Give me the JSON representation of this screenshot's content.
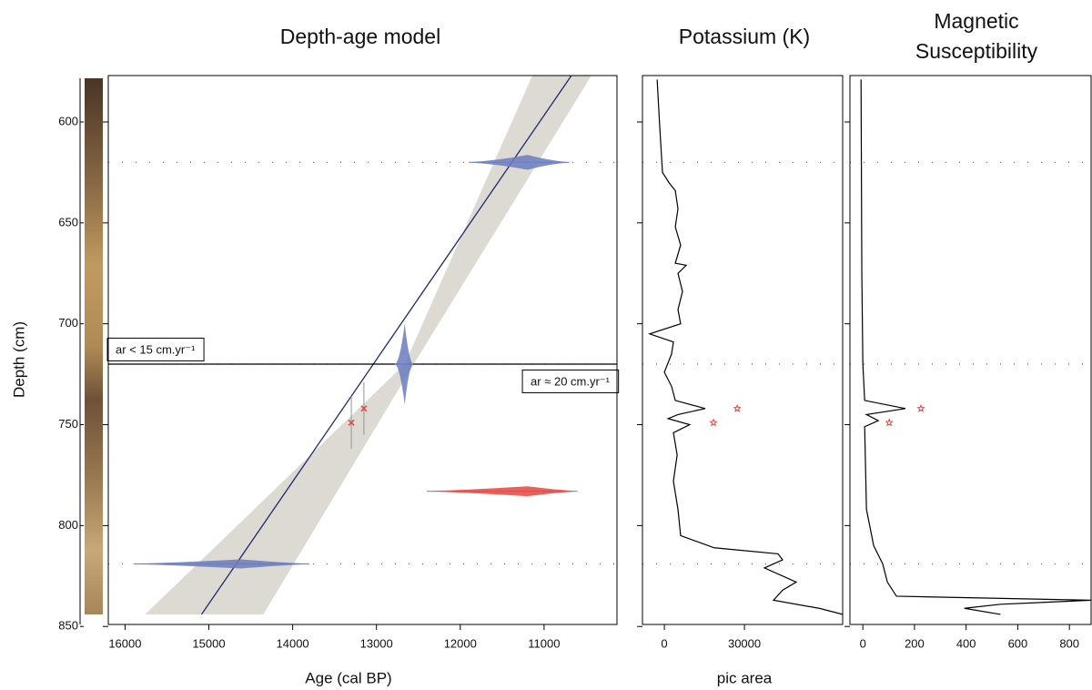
{
  "chart_data": [
    {
      "type": "depth-age",
      "title": "Depth-age model",
      "xlabel": "Age (cal BP)",
      "ylabel": "Depth (cm)",
      "xlim": [
        16200,
        10130
      ],
      "xticks": [
        16000,
        15000,
        14000,
        13000,
        12000,
        11000
      ],
      "ylim": [
        577,
        849
      ],
      "yticks": [
        600,
        650,
        700,
        750,
        800,
        850
      ],
      "marker_depths": [
        620,
        720,
        819
      ],
      "boundary_depth": 720,
      "model": {
        "color": "#1f2a6e",
        "depth": [
          577,
          844
        ],
        "age": [
          10674,
          15087
        ]
      },
      "band": {
        "color": "#dddad3",
        "depth": [
          577,
          720,
          844
        ],
        "age_young": [
          10435,
          12555,
          14350
        ],
        "age_old": [
          11140,
          12663,
          15760
        ]
      },
      "dates": [
        {
          "depth": 620,
          "age": 11196,
          "age_min": 10700,
          "age_max": 11900,
          "color": "#6b7bbf"
        },
        {
          "depth": 720,
          "age": 12663,
          "age_min": 12560,
          "age_max": 12780,
          "color": "#6b7bbf"
        },
        {
          "depth": 783,
          "age": 11200,
          "age_min": 10600,
          "age_max": 12400,
          "color": "#e8453c"
        },
        {
          "depth": 819,
          "age": 14620,
          "age_min": 13800,
          "age_max": 15900,
          "color": "#6b7bbf"
        }
      ],
      "tephra": {
        "color": "#e8453c",
        "depth": [
          749,
          742
        ],
        "age": [
          13300,
          13150
        ],
        "depth_err": [
          13,
          13
        ]
      },
      "annotations": [
        "ar < 15 cm.yr⁻¹",
        "ar ≈ 20 cm.yr⁻¹"
      ]
    },
    {
      "type": "line",
      "title": "Potassium (K)",
      "xlabel": "pic area",
      "xlim": [
        -8200,
        66800
      ],
      "xticks": [
        0,
        30000
      ],
      "color": "#000000",
      "depth": [
        579,
        603,
        625,
        630,
        634,
        643,
        652,
        661,
        670,
        671,
        675,
        684,
        693,
        700,
        705,
        709,
        715,
        724,
        731,
        738,
        742,
        745,
        747,
        750,
        754,
        765,
        778,
        792,
        805,
        811,
        814,
        817,
        821,
        828,
        832,
        837,
        841,
        844
      ],
      "values": [
        -2700,
        -1700,
        -700,
        1700,
        4100,
        5100,
        4100,
        6100,
        4100,
        8200,
        5100,
        6800,
        5100,
        6100,
        -5500,
        3400,
        2700,
        0,
        2700,
        4100,
        15300,
        5100,
        1400,
        9500,
        3400,
        4800,
        3400,
        5100,
        6100,
        18700,
        42600,
        44300,
        37500,
        49400,
        44300,
        40900,
        58000,
        66800
      ],
      "stars": {
        "color": "#e8453c",
        "depth": [
          742,
          749
        ],
        "values": [
          27300,
          18400
        ]
      }
    },
    {
      "type": "line",
      "title_lines": [
        "Magnetic",
        "Susceptibility"
      ],
      "xlim": [
        -50,
        884
      ],
      "xticks": [
        0,
        200,
        400,
        600,
        800
      ],
      "color": "#000000",
      "depth": [
        579,
        675,
        720,
        738,
        742,
        745,
        748,
        751,
        792,
        810,
        819,
        828,
        835,
        837,
        839,
        841,
        844
      ],
      "values": [
        -7,
        -4,
        0,
        7,
        165,
        14,
        60,
        7,
        14,
        42,
        77,
        95,
        130,
        884,
        533,
        393,
        533
      ],
      "stars": {
        "color": "#e8453c",
        "depth": [
          742,
          749
        ],
        "values": [
          225,
          102
        ]
      }
    }
  ]
}
